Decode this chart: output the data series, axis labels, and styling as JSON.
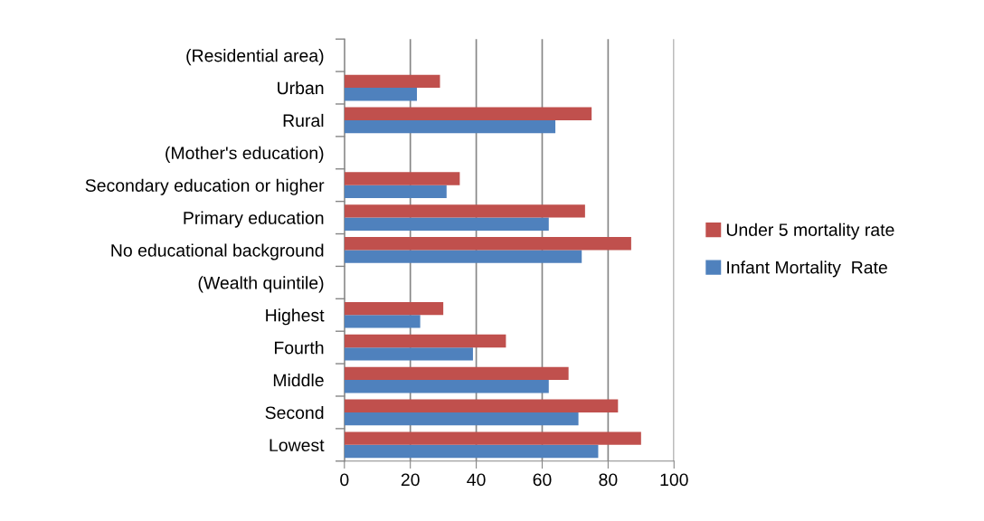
{
  "chart_data": {
    "type": "bar",
    "orientation": "horizontal",
    "categories": [
      "(Residential area)",
      "Urban",
      "Rural",
      "(Mother's education)",
      "Secondary education or higher",
      "Primary education",
      "No educational background",
      "(Wealth quintile)",
      "Highest",
      "Fourth",
      "Middle",
      "Second",
      "Lowest"
    ],
    "series": [
      {
        "name": "Infant Mortality  Rate",
        "color": "#4f81bd",
        "values": [
          null,
          22,
          64,
          null,
          31,
          62,
          72,
          null,
          23,
          39,
          62,
          71,
          77
        ]
      },
      {
        "name": "Under 5 mortality rate",
        "color": "#c0504d",
        "values": [
          null,
          29,
          75,
          null,
          35,
          73,
          87,
          null,
          30,
          49,
          68,
          83,
          90
        ]
      }
    ],
    "xlim": [
      0,
      100
    ],
    "xticks": [
      0,
      20,
      40,
      60,
      80,
      100
    ],
    "grid": "x",
    "legend": "right"
  }
}
